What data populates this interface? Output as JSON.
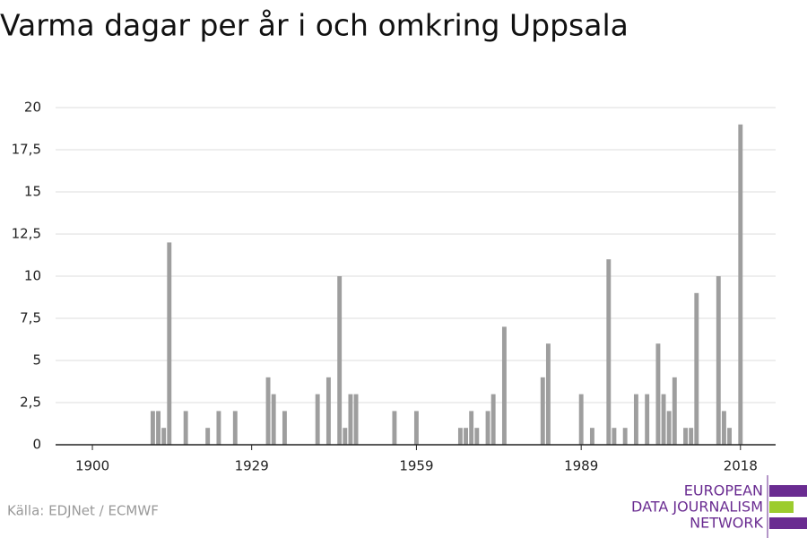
{
  "chart_data": {
    "type": "bar",
    "title": "Varma dagar per år i och omkring Uppsala",
    "x": [
      1911,
      1912,
      1913,
      1914,
      1917,
      1921,
      1923,
      1926,
      1932,
      1933,
      1935,
      1941,
      1943,
      1945,
      1946,
      1947,
      1948,
      1955,
      1959,
      1967,
      1968,
      1969,
      1970,
      1972,
      1973,
      1975,
      1982,
      1983,
      1989,
      1991,
      1994,
      1995,
      1997,
      1999,
      2001,
      2003,
      2004,
      2005,
      2006,
      2008,
      2009,
      2010,
      2014,
      2015,
      2016,
      2018
    ],
    "values": [
      2,
      2,
      1,
      12,
      2,
      1,
      2,
      2,
      4,
      3,
      2,
      3,
      4,
      10,
      1,
      3,
      3,
      2,
      2,
      1,
      1,
      2,
      1,
      2,
      3,
      7,
      4,
      6,
      3,
      1,
      11,
      1,
      1,
      3,
      3,
      6,
      3,
      2,
      4,
      1,
      1,
      9,
      10,
      2,
      1,
      19
    ],
    "color": "#9e9e9e",
    "xlim": [
      1893.3,
      2024.4
    ],
    "xticks": [
      1900,
      1929,
      1959,
      1989,
      2018
    ],
    "ylim": [
      0,
      20
    ],
    "yticks": [
      0,
      {
        "value": 2.5,
        "label": "2,5"
      },
      5,
      {
        "value": 7.5,
        "label": "7,5"
      },
      10,
      {
        "value": 12.5,
        "label": "12,5"
      },
      15,
      {
        "value": 17.5,
        "label": "17,5"
      },
      20
    ],
    "grid": true
  },
  "footer": {
    "source": "Källa: EDJNet / ECMWF",
    "logo": [
      "EUROPEAN",
      "DATA JOURNALISM",
      "NETWORK"
    ]
  }
}
